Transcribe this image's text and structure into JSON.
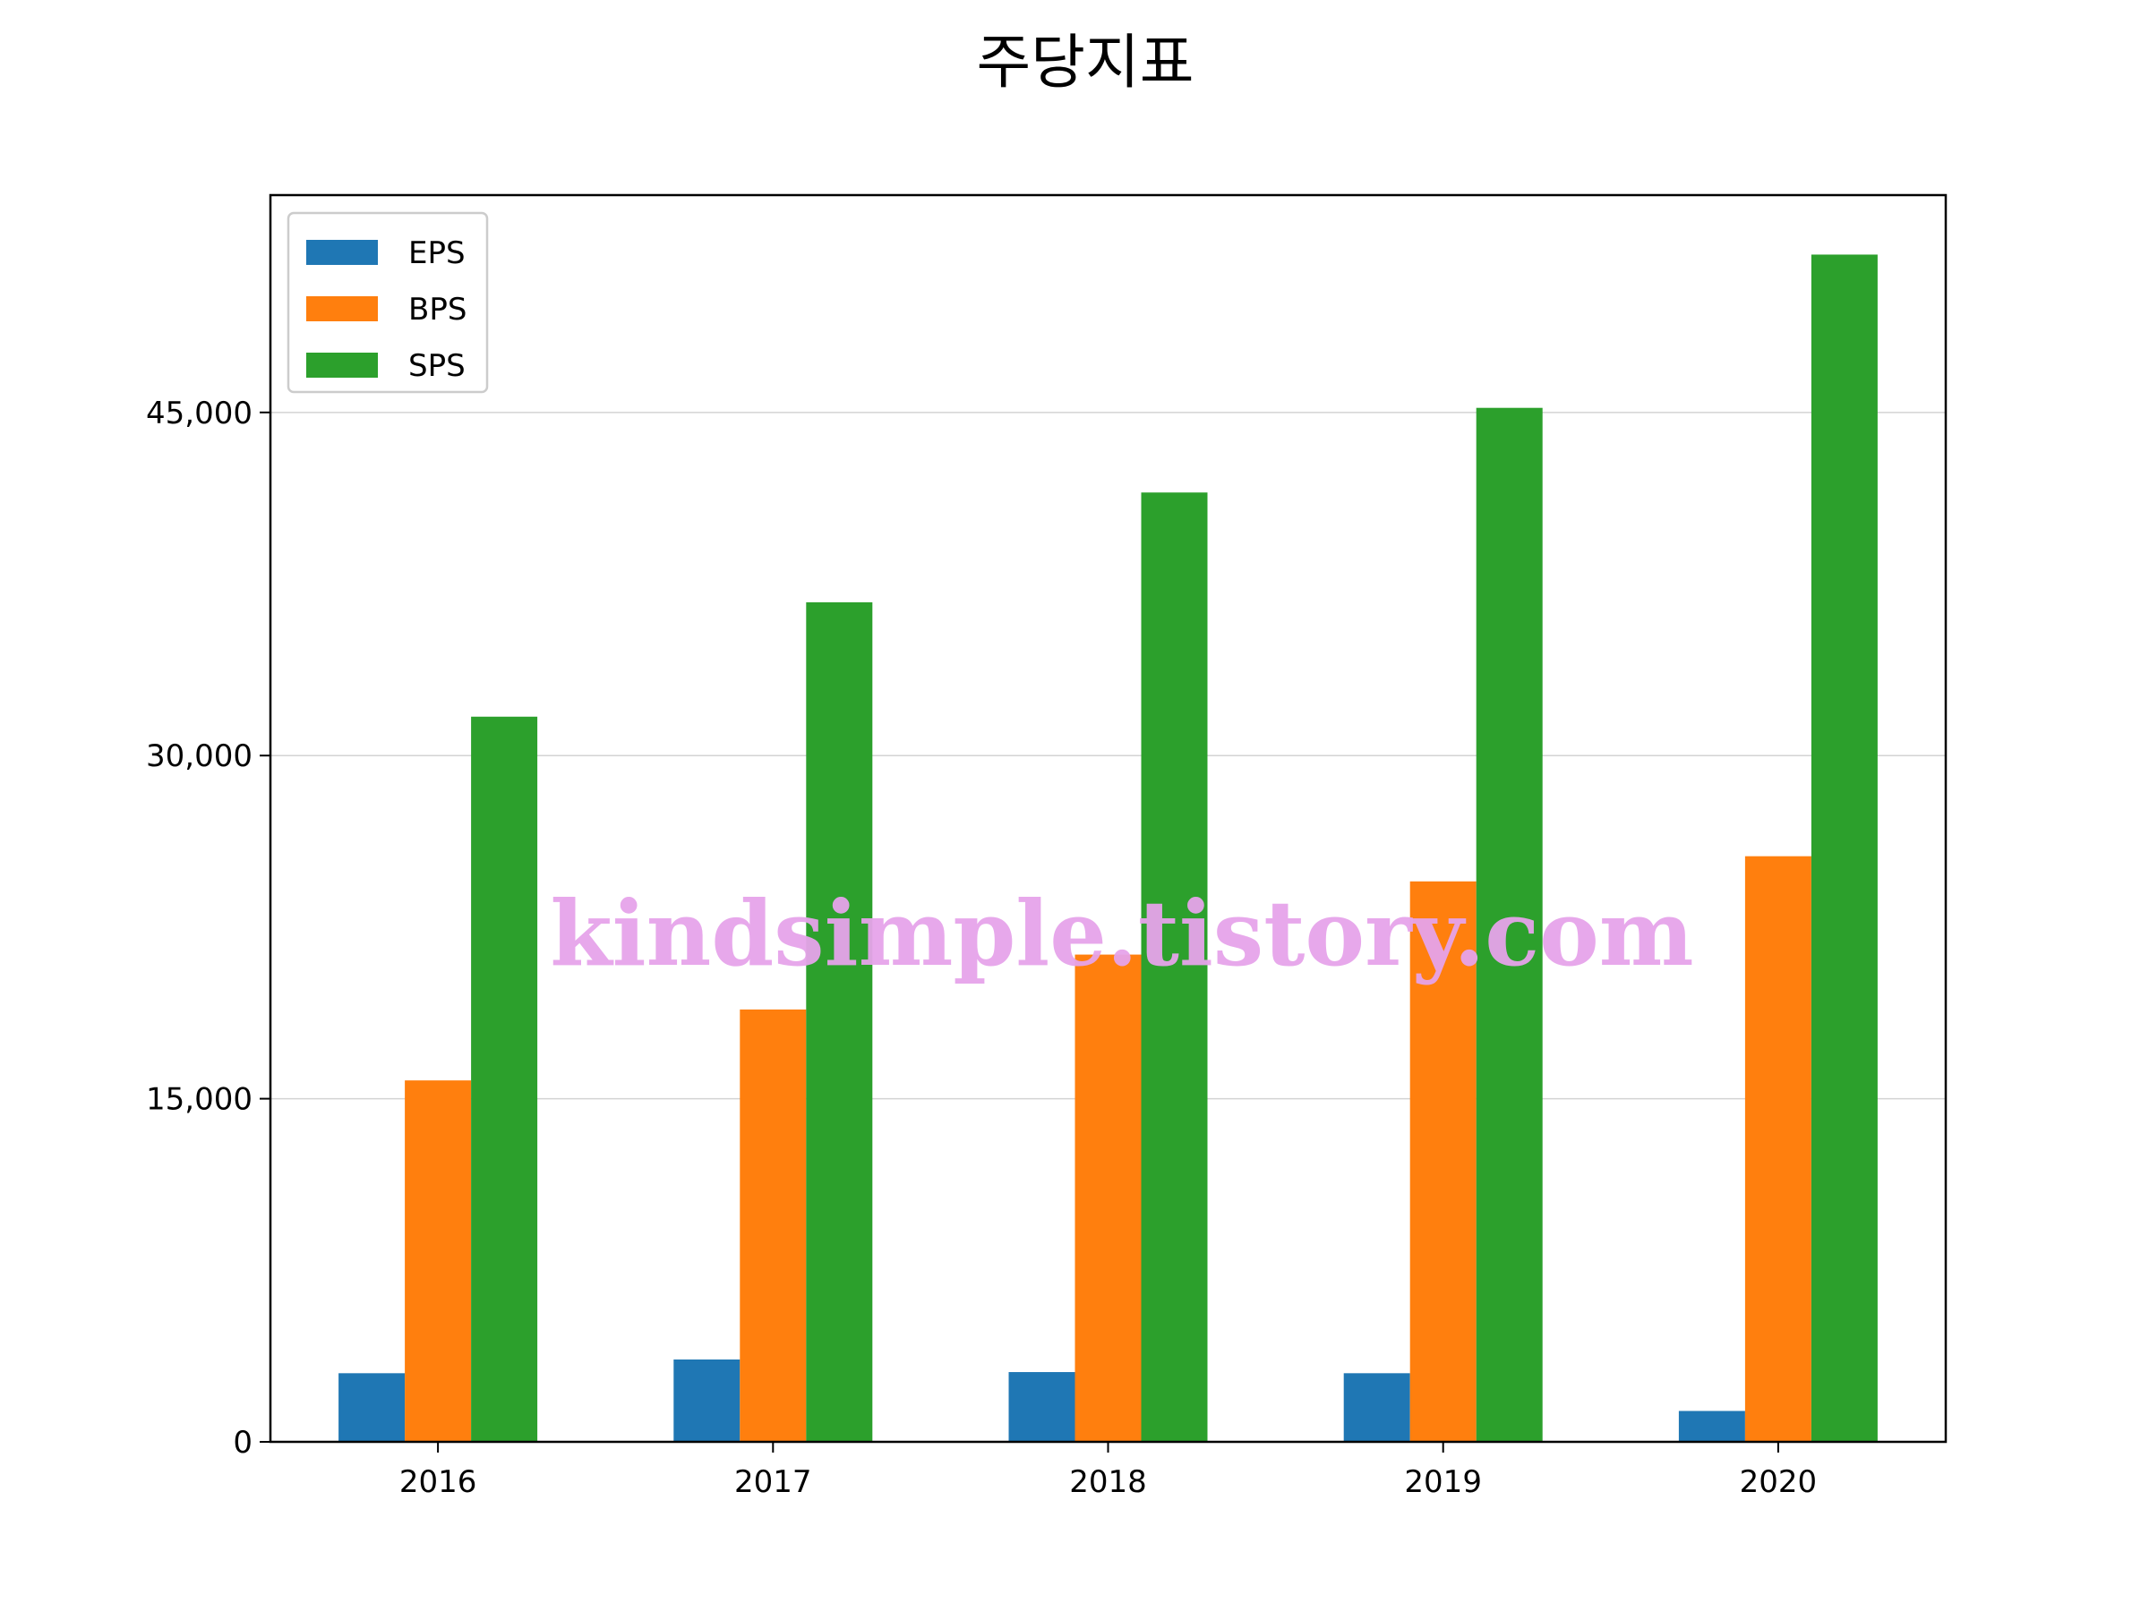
{
  "chart_data": {
    "type": "bar",
    "title": "주당지표",
    "xlabel": "",
    "ylabel": "",
    "categories": [
      "2016",
      "2017",
      "2018",
      "2019",
      "2020"
    ],
    "series": [
      {
        "name": "EPS",
        "color": "#1f77b4",
        "values": [
          3000,
          3600,
          3050,
          3000,
          1350
        ]
      },
      {
        "name": "BPS",
        "color": "#ff7f0e",
        "values": [
          15800,
          18900,
          21300,
          24500,
          25600
        ]
      },
      {
        "name": "SPS",
        "color": "#2ca02c",
        "values": [
          31700,
          36700,
          41500,
          45200,
          51900
        ]
      }
    ],
    "ylim": [
      0,
      54500
    ],
    "yticks": [
      0,
      15000,
      30000,
      45000
    ],
    "ytick_labels": [
      "0",
      "15,000",
      "30,000",
      "45,000"
    ],
    "grid": "horizontal",
    "legend": "top-left"
  },
  "watermark": "kindsimple.tistory.com"
}
